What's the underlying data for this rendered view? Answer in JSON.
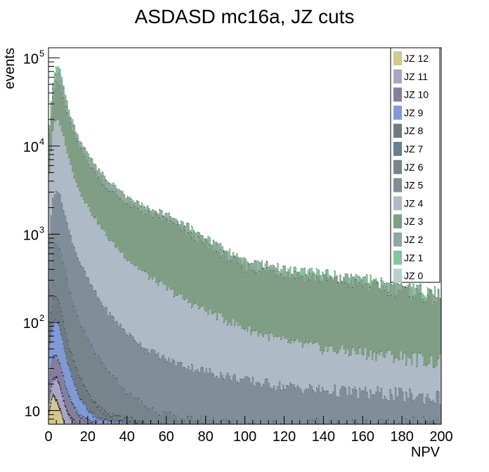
{
  "chart_data": {
    "type": "area",
    "title": "ASDASD mc16a, JZ cuts",
    "xlabel": "NPV",
    "ylabel": "events",
    "xlim": [
      0,
      200
    ],
    "ylim": [
      7,
      130000
    ],
    "log_y": true,
    "grid": false,
    "legend_position": "top-right",
    "x_ticks": [
      {
        "value": 0,
        "label": "0"
      },
      {
        "value": 20,
        "label": "20"
      },
      {
        "value": 40,
        "label": "40"
      },
      {
        "value": 60,
        "label": "60"
      },
      {
        "value": 80,
        "label": "80"
      },
      {
        "value": 100,
        "label": "100"
      },
      {
        "value": 120,
        "label": "120"
      },
      {
        "value": 140,
        "label": "140"
      },
      {
        "value": 160,
        "label": "160"
      },
      {
        "value": 180,
        "label": "180"
      },
      {
        "value": 200,
        "label": "200"
      }
    ],
    "y_ticks": [
      {
        "value": 10,
        "base": "10",
        "exp": ""
      },
      {
        "value": 100,
        "base": "10",
        "exp": "2"
      },
      {
        "value": 1000,
        "base": "10",
        "exp": "3"
      },
      {
        "value": 10000,
        "base": "10",
        "exp": "4"
      },
      {
        "value": 100000,
        "base": "10",
        "exp": "5"
      }
    ],
    "series": [
      {
        "name": "JZ 12",
        "color": "#d0c98a"
      },
      {
        "name": "JZ 11",
        "color": "#aaa5c4"
      },
      {
        "name": "JZ 10",
        "color": "#857f9e"
      },
      {
        "name": "JZ 9",
        "color": "#7f9ad4"
      },
      {
        "name": "JZ 8",
        "color": "#6f7a82"
      },
      {
        "name": "JZ 7",
        "color": "#667f94"
      },
      {
        "name": "JZ 6",
        "color": "#76858c"
      },
      {
        "name": "JZ 5",
        "color": "#7f8e99"
      },
      {
        "name": "JZ 4",
        "color": "#aebbc6"
      },
      {
        "name": "JZ 3",
        "color": "#7f9e84"
      },
      {
        "name": "JZ 2",
        "color": "#8eaa9c"
      },
      {
        "name": "JZ 1",
        "color": "#86c49c"
      },
      {
        "name": "JZ 0",
        "color": "#b6d2c6"
      }
    ],
    "cumulative_envelope": [
      {
        "name": "JZ 1",
        "x": [
          0,
          2,
          4,
          6,
          8,
          10,
          15,
          20,
          25,
          30,
          40,
          50,
          60,
          70,
          80,
          100,
          120,
          140,
          160,
          180,
          200
        ],
        "y": [
          18000,
          60000,
          85000,
          70000,
          40000,
          25000,
          12000,
          8000,
          5500,
          4000,
          2600,
          2000,
          1700,
          1300,
          900,
          480,
          400,
          350,
          300,
          250,
          200
        ]
      },
      {
        "name": "JZ 2",
        "x": [
          0,
          2,
          4,
          6,
          8,
          10,
          15,
          20,
          25,
          30,
          40,
          50,
          60,
          70,
          80,
          100,
          120,
          140,
          160,
          180,
          200
        ],
        "y": [
          16000,
          50000,
          70000,
          62000,
          38000,
          24000,
          11500,
          7800,
          5400,
          3900,
          2550,
          1950,
          1650,
          1250,
          870,
          470,
          390,
          340,
          290,
          245,
          195
        ]
      },
      {
        "name": "JZ 3",
        "x": [
          0,
          2,
          4,
          6,
          8,
          10,
          15,
          20,
          25,
          30,
          40,
          50,
          60,
          70,
          80,
          100,
          120,
          140,
          160,
          180,
          200
        ],
        "y": [
          14000,
          40000,
          55000,
          45000,
          30000,
          20000,
          10000,
          6500,
          4500,
          3300,
          2200,
          1700,
          1450,
          1050,
          750,
          420,
          360,
          310,
          270,
          230,
          180
        ]
      },
      {
        "name": "JZ 4",
        "x": [
          0,
          2,
          4,
          6,
          8,
          10,
          15,
          20,
          25,
          30,
          40,
          50,
          60,
          70,
          80,
          100,
          120,
          140,
          160,
          180,
          200
        ],
        "y": [
          5000,
          17000,
          20000,
          16000,
          11000,
          7000,
          3200,
          2000,
          1300,
          900,
          520,
          340,
          240,
          175,
          135,
          85,
          60,
          50,
          45,
          40,
          35
        ]
      },
      {
        "name": "JZ 5",
        "x": [
          0,
          2,
          4,
          6,
          8,
          10,
          15,
          20,
          25,
          30,
          40,
          50,
          60,
          70,
          80,
          100,
          120,
          140,
          160,
          180,
          200
        ],
        "y": [
          1000,
          2800,
          3300,
          2500,
          1700,
          1100,
          520,
          300,
          190,
          130,
          75,
          50,
          38,
          32,
          28,
          22,
          19,
          17,
          16,
          15,
          14
        ]
      },
      {
        "name": "JZ 6",
        "x": [
          0,
          2,
          4,
          6,
          8,
          10,
          15,
          20,
          25,
          30,
          40,
          50,
          60,
          70,
          80,
          100,
          120,
          140,
          160,
          180,
          200
        ],
        "y": [
          250,
          700,
          820,
          620,
          400,
          240,
          110,
          62,
          40,
          28,
          16,
          11,
          9,
          8,
          8,
          7,
          7,
          7,
          7,
          7,
          7
        ]
      },
      {
        "name": "JZ 8",
        "x": [
          0,
          2,
          4,
          6,
          8,
          10,
          15,
          20,
          25,
          30,
          40,
          50,
          60
        ],
        "y": [
          80,
          180,
          200,
          150,
          90,
          55,
          26,
          16,
          11,
          9,
          8,
          7,
          7
        ]
      },
      {
        "name": "JZ 9",
        "x": [
          0,
          2,
          4,
          6,
          8,
          10,
          15,
          20,
          25,
          30,
          40,
          45
        ],
        "y": [
          40,
          95,
          110,
          80,
          50,
          32,
          15,
          10,
          8,
          7.5,
          7.2,
          7
        ]
      },
      {
        "name": "JZ 10",
        "x": [
          0,
          2,
          4,
          6,
          8,
          10,
          15,
          20,
          25
        ],
        "y": [
          20,
          40,
          42,
          32,
          22,
          15,
          9,
          7.5,
          7
        ]
      },
      {
        "name": "JZ 11",
        "x": [
          0,
          2,
          4,
          6,
          8,
          10,
          14
        ],
        "y": [
          12,
          22,
          24,
          18,
          12,
          9,
          7
        ]
      },
      {
        "name": "JZ 12",
        "x": [
          0,
          2,
          4,
          6,
          8
        ],
        "y": [
          9,
          15,
          13,
          10,
          7
        ]
      }
    ]
  }
}
